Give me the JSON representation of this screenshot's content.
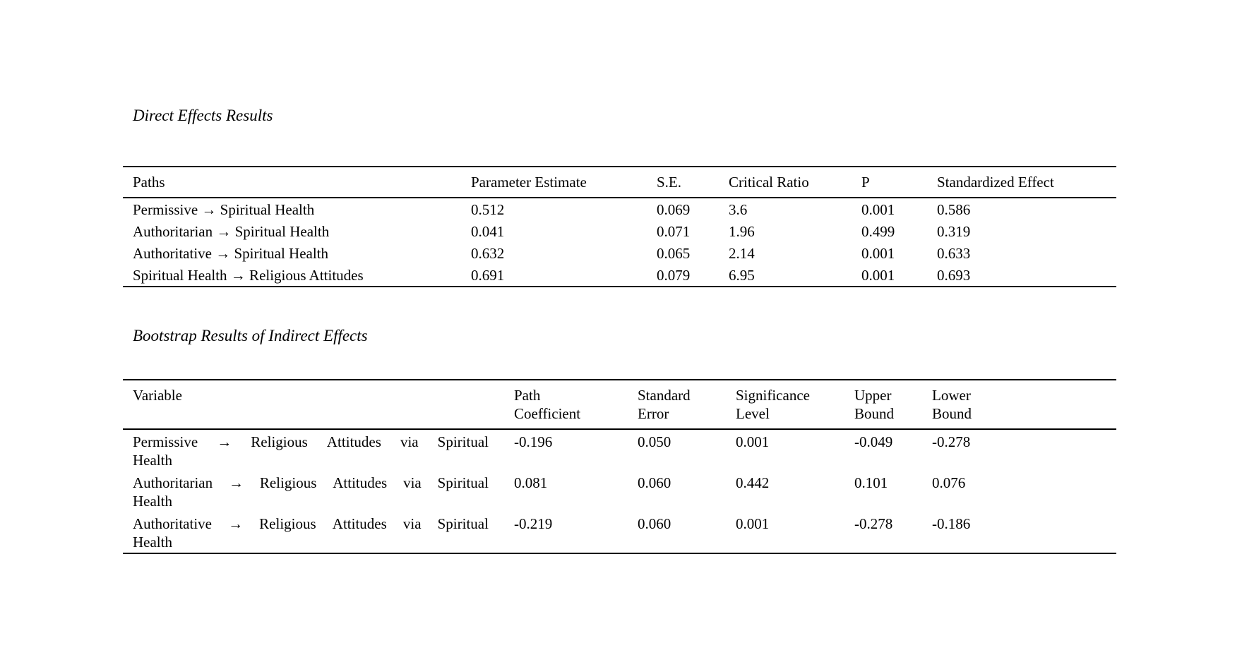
{
  "page": {
    "background_color": "#ffffff",
    "text_color": "#000000"
  },
  "direct_effects": {
    "title": "Direct Effects Results",
    "table": {
      "headers": [
        "Paths",
        "Parameter Estimate",
        "S.E.",
        "Critical Ratio",
        "P",
        "Standardized Effect"
      ],
      "rows": [
        {
          "path": "Permissive → Spiritual Health",
          "parameter_estimate": "0.512",
          "se": "0.069",
          "critical_ratio": "3.6",
          "p": "0.001",
          "standardized_effect": "0.586"
        },
        {
          "path": "Authoritarian → Spiritual Health",
          "parameter_estimate": "0.041",
          "se": "0.071",
          "critical_ratio": "1.96",
          "p": "0.499",
          "standardized_effect": "0.319"
        },
        {
          "path": "Authoritative → Spiritual Health",
          "parameter_estimate": "0.632",
          "se": "0.065",
          "critical_ratio": "2.14",
          "p": "0.001",
          "standardized_effect": "0.633"
        },
        {
          "path": "Spiritual Health → Religious Attitudes",
          "parameter_estimate": "0.691",
          "se": "0.079",
          "critical_ratio": "6.95",
          "p": "0.001",
          "standardized_effect": "0.693"
        }
      ]
    }
  },
  "indirect_effects": {
    "title": "Bootstrap Results of Indirect Effects",
    "table": {
      "headers": [
        "Variable",
        "Path\nCoefficient",
        "Standard\nError",
        "Significance\nLevel",
        "Upper\nBound",
        "Lower\nBound"
      ],
      "rows": [
        {
          "variable": "Permissive → Religious Attitudes via Spiritual\nHealth",
          "path_coefficient": "-0.196",
          "standard_error": "0.050",
          "significance_level": "0.001",
          "upper_bound": "-0.049",
          "lower_bound": "-0.278"
        },
        {
          "variable": "Authoritarian → Religious Attitudes via Spiritual\nHealth",
          "path_coefficient": "0.081",
          "standard_error": "0.060",
          "significance_level": "0.442",
          "upper_bound": "0.101",
          "lower_bound": "0.076"
        },
        {
          "variable": "Authoritative → Religious Attitudes via Spiritual\nHealth",
          "path_coefficient": "-0.219",
          "standard_error": "0.060",
          "significance_level": "0.001",
          "upper_bound": "-0.278",
          "lower_bound": "-0.186"
        }
      ]
    }
  }
}
